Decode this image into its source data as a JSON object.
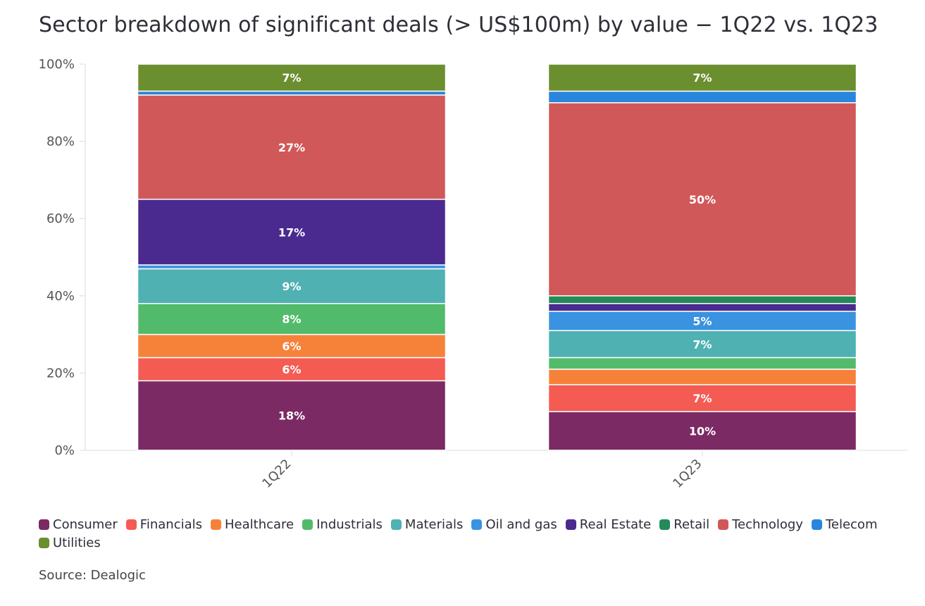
{
  "chart_data": {
    "type": "bar",
    "stacked": true,
    "title": "Sector breakdown of significant deals (> US$100m) by value − 1Q22 vs. 1Q23",
    "categories": [
      "1Q22",
      "1Q23"
    ],
    "ylim": [
      0,
      100
    ],
    "yticks": [
      "0%",
      "20%",
      "40%",
      "60%",
      "80%",
      "100%"
    ],
    "ytick_values": [
      0,
      20,
      40,
      60,
      80,
      100
    ],
    "legend_position": "bottom",
    "series": [
      {
        "name": "Consumer",
        "color": "#7b2a64",
        "values": [
          18,
          10
        ],
        "labels": [
          "18%",
          "10%"
        ]
      },
      {
        "name": "Financials",
        "color": "#f45b52",
        "values": [
          6,
          7
        ],
        "labels": [
          "6%",
          "7%"
        ]
      },
      {
        "name": "Healthcare",
        "color": "#f6823a",
        "values": [
          6,
          4
        ],
        "labels": [
          "6%",
          ""
        ]
      },
      {
        "name": "Industrials",
        "color": "#52bb6b",
        "values": [
          8,
          3
        ],
        "labels": [
          "8%",
          ""
        ]
      },
      {
        "name": "Materials",
        "color": "#4fb1b2",
        "values": [
          9,
          7
        ],
        "labels": [
          "9%",
          "7%"
        ]
      },
      {
        "name": "Oil and gas",
        "color": "#3a93e0",
        "values": [
          1,
          5
        ],
        "labels": [
          "",
          "5%"
        ]
      },
      {
        "name": "Real Estate",
        "color": "#4a2a8f",
        "values": [
          17,
          2
        ],
        "labels": [
          "17%",
          ""
        ]
      },
      {
        "name": "Retail",
        "color": "#238a5a",
        "values": [
          0,
          2
        ],
        "labels": [
          "",
          ""
        ]
      },
      {
        "name": "Technology",
        "color": "#d15858",
        "values": [
          27,
          50
        ],
        "labels": [
          "27%",
          "50%"
        ]
      },
      {
        "name": "Telecom",
        "color": "#2a86dc",
        "values": [
          1,
          3
        ],
        "labels": [
          "",
          ""
        ]
      },
      {
        "name": "Utilities",
        "color": "#6b8e2f",
        "values": [
          7,
          7
        ],
        "labels": [
          "7%",
          "7%"
        ]
      }
    ]
  },
  "footer": {
    "source": "Source: Dealogic"
  }
}
